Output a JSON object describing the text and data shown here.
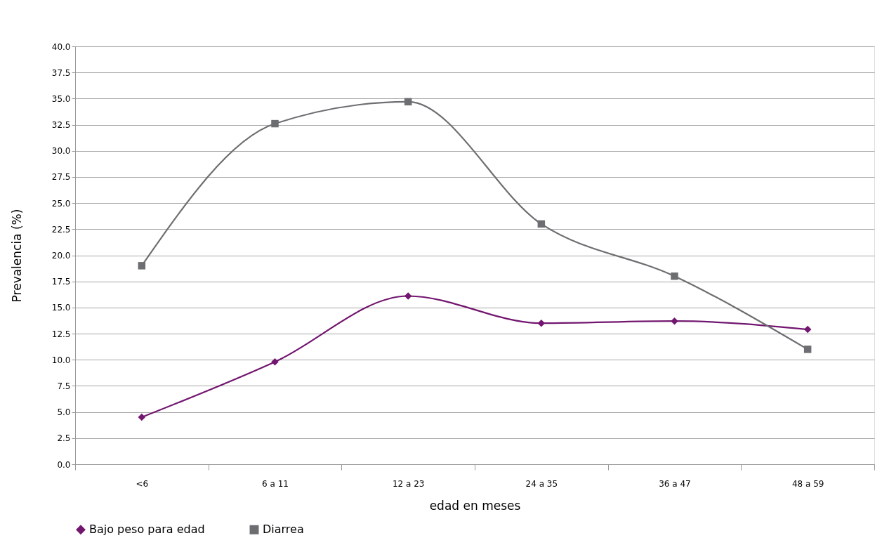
{
  "chart_data": {
    "type": "line",
    "xlabel": "edad en meses",
    "ylabel": "Prevalencia (%)",
    "categories": [
      "<6",
      "6 a 11",
      "12 a 23",
      "24 a 35",
      "36 a 47",
      "48 a 59"
    ],
    "series": [
      {
        "name": "Bajo peso para edad",
        "color": "#72166f",
        "marker": "diamond",
        "values": [
          4.5,
          9.8,
          16.1,
          13.5,
          13.7,
          12.9
        ]
      },
      {
        "name": "Diarrea",
        "color": "#6d6e71",
        "marker": "square",
        "values": [
          19.0,
          32.6,
          34.7,
          23.0,
          18.0,
          11.0
        ]
      }
    ],
    "ylim": [
      0,
      40
    ],
    "yticks": [
      {
        "value": 0,
        "label": "0.0"
      },
      2.5,
      {
        "value": 5,
        "label": "5.0"
      },
      7.5,
      {
        "value": 10,
        "label": "10.0"
      },
      12.5,
      {
        "value": 15,
        "label": "15.0"
      },
      17.5,
      {
        "value": 20,
        "label": "20.0"
      },
      22.5,
      {
        "value": 25,
        "label": "25.0"
      },
      27.5,
      {
        "value": 30,
        "label": "30.0"
      },
      32.5,
      {
        "value": 35,
        "label": "35.0"
      },
      37.5,
      {
        "value": 40,
        "label": "40.0"
      }
    ],
    "grid": "y",
    "legend": "bottom",
    "line_style": "solid"
  }
}
